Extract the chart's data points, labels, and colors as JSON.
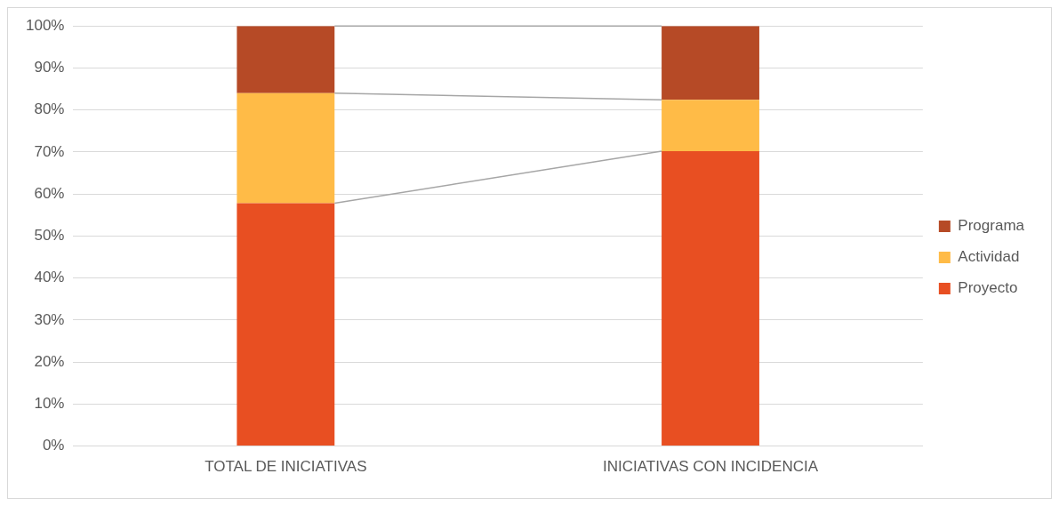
{
  "chart_data": {
    "type": "bar",
    "stacked": true,
    "categories": [
      "TOTAL DE INICIATIVAS",
      "INICIATIVAS CON INCIDENCIA"
    ],
    "series": [
      {
        "name": "Proyecto",
        "color": "#e84f22",
        "values": [
          57.8,
          70.2
        ]
      },
      {
        "name": "Actividad",
        "color": "#ffbb47",
        "values": [
          26.2,
          12.2
        ]
      },
      {
        "name": "Programa",
        "color": "#b64a26",
        "values": [
          16.0,
          17.6
        ]
      }
    ],
    "ylim": [
      0,
      100
    ],
    "yticks": [
      {
        "value": 0,
        "label": "0%"
      },
      {
        "value": 10,
        "label": "10%"
      },
      {
        "value": 20,
        "label": "20%"
      },
      {
        "value": 30,
        "label": "30%"
      },
      {
        "value": 40,
        "label": "40%"
      },
      {
        "value": 50,
        "label": "50%"
      },
      {
        "value": 60,
        "label": "60%"
      },
      {
        "value": 70,
        "label": "70%"
      },
      {
        "value": 80,
        "label": "80%"
      },
      {
        "value": 90,
        "label": "90%"
      },
      {
        "value": 100,
        "label": "100%"
      }
    ],
    "grid": "y",
    "legend": "right"
  }
}
